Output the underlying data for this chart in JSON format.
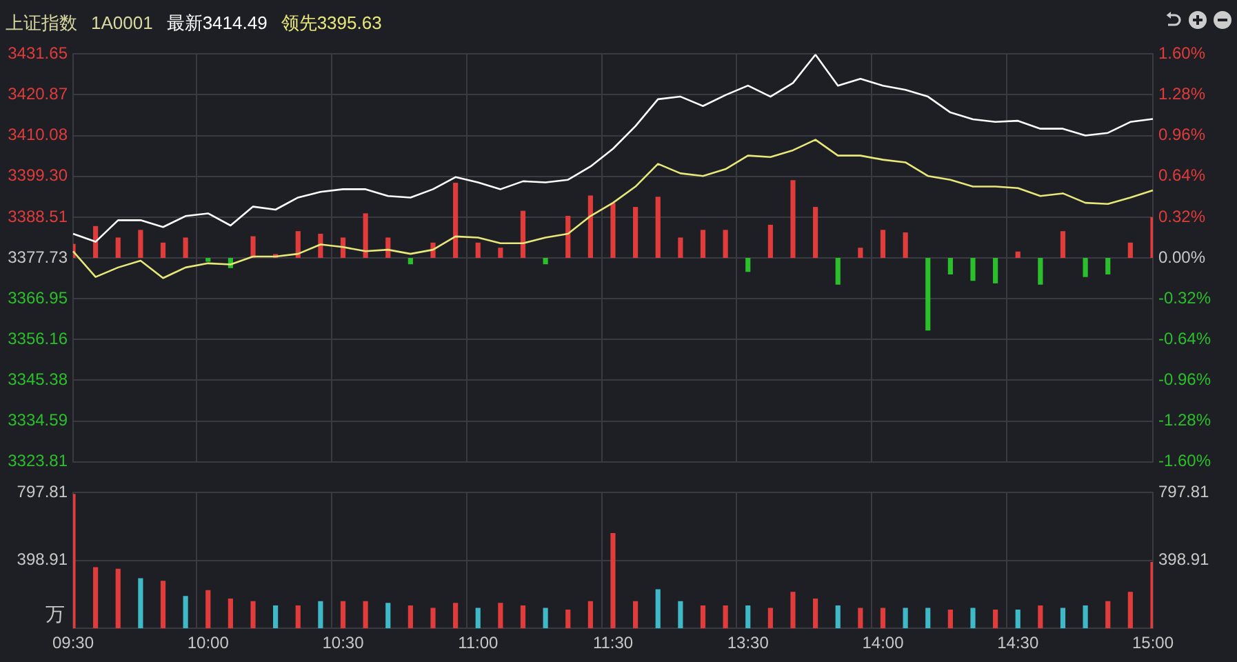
{
  "chart_data": [
    {
      "type": "line",
      "title": "上证指数",
      "annotations": [
        "1A0001",
        "最新3414.49",
        "领先3395.63"
      ],
      "categories": [
        null,
        null,
        null,
        null,
        null,
        null,
        null,
        null,
        null,
        null,
        null,
        null,
        null,
        null,
        null,
        null,
        null,
        null,
        null,
        null,
        null,
        null,
        null,
        null,
        null,
        null,
        null,
        null,
        null,
        null,
        null,
        null,
        null,
        null,
        null,
        null,
        null,
        null,
        null,
        null,
        null,
        null,
        null,
        null,
        null,
        null,
        null,
        null,
        null
      ],
      "series": [
        {
          "type": "bar",
          "axis": "y2",
          "colors": [
            "#e03c3c",
            "#e03c3c",
            "#e03c3c",
            "#e03c3c",
            "#e03c3c",
            "#e03c3c",
            "#2bbf2b",
            "#2bbf2b",
            "#e03c3c",
            "#e03c3c",
            "#e03c3c",
            "#e03c3c",
            "#e03c3c",
            "#e03c3c",
            "#e03c3c",
            "#2bbf2b",
            "#e03c3c",
            "#e03c3c",
            "#e03c3c",
            "#e03c3c",
            "#e03c3c",
            "#2bbf2b",
            "#e03c3c",
            "#e03c3c",
            "#e03c3c",
            "#e03c3c",
            "#e03c3c",
            "#e03c3c",
            "#e03c3c",
            "#e03c3c",
            "#2bbf2b",
            "#e03c3c",
            "#e03c3c",
            "#e03c3c",
            "#2bbf2b",
            "#e03c3c",
            "#e03c3c",
            "#e03c3c",
            "#2bbf2b",
            "#2bbf2b",
            "#2bbf2b",
            "#2bbf2b",
            "#e03c3c",
            "#2bbf2b",
            "#e03c3c",
            "#2bbf2b",
            "#2bbf2b",
            "#e03c3c",
            "#e03c3c"
          ],
          "values": [
            0.11,
            0.25,
            0.16,
            0.22,
            0.12,
            0.16,
            -0.03,
            -0.08,
            0.17,
            0.03,
            0.21,
            0.19,
            0.16,
            0.35,
            0.16,
            -0.05,
            0.12,
            0.59,
            0.12,
            0.08,
            0.37,
            -0.05,
            0.33,
            0.49,
            0.43,
            0.4,
            0.48,
            0.16,
            0.22,
            0.22,
            -0.11,
            0.26,
            0.61,
            0.4,
            -0.21,
            0.08,
            0.22,
            0.2,
            -0.57,
            -0.13,
            -0.18,
            -0.2,
            0.05,
            -0.21,
            0.21,
            -0.15,
            -0.13,
            0.12,
            0.32
          ]
        },
        {
          "color": "#ffffff",
          "values": [
            3384.1,
            3382.0,
            3387.7,
            3387.7,
            3385.9,
            3388.8,
            3389.5,
            3386.3,
            3391.3,
            3390.5,
            3393.7,
            3395.2,
            3395.9,
            3395.9,
            3394.1,
            3393.7,
            3395.9,
            3399.1,
            3397.7,
            3395.9,
            3398.0,
            3397.7,
            3398.4,
            3401.9,
            3406.6,
            3412.6,
            3419.7,
            3420.4,
            3417.9,
            3420.8,
            3423.3,
            3420.4,
            3424.0,
            3431.5,
            3423.3,
            3425.1,
            3423.3,
            3422.2,
            3420.4,
            3416.2,
            3414.4,
            3413.7,
            3414.0,
            3411.9,
            3411.9,
            3410.1,
            3410.8,
            3413.7,
            3414.5
          ]
        },
        {
          "color": "#e8e87a",
          "values": [
            3379.5,
            3372.7,
            3375.2,
            3377.0,
            3372.4,
            3375.2,
            3376.3,
            3376.0,
            3378.1,
            3378.1,
            3378.8,
            3381.3,
            3380.6,
            3379.5,
            3379.9,
            3378.8,
            3379.9,
            3383.4,
            3383.1,
            3381.6,
            3381.6,
            3383.1,
            3384.1,
            3388.8,
            3392.3,
            3396.6,
            3402.6,
            3400.1,
            3399.4,
            3401.2,
            3404.8,
            3404.4,
            3406.2,
            3409.0,
            3404.8,
            3404.8,
            3403.7,
            3403.0,
            3399.4,
            3398.4,
            3396.6,
            3396.6,
            3396.2,
            3394.1,
            3394.8,
            3392.3,
            3392.0,
            3393.7,
            3395.6
          ]
        }
      ],
      "ylim": [
        3323.81,
        3431.65
      ],
      "yticks": [
        3323.81,
        3334.59,
        3345.38,
        3356.16,
        3366.95,
        3377.73,
        3388.51,
        {
          "value": 3399.3,
          "label": "3399.30"
        },
        3410.08,
        3420.87,
        3431.65
      ],
      "y2lim": [
        -1.6,
        1.6
      ],
      "y2ticks": [
        {
          "value": -1.6,
          "label": "-1.60%"
        },
        {
          "value": -1.28,
          "label": "-1.28%"
        },
        {
          "value": -0.96,
          "label": "-0.96%"
        },
        {
          "value": -0.64,
          "label": "-0.64%"
        },
        {
          "value": -0.32,
          "label": "-0.32%"
        },
        {
          "value": 0,
          "label": "0.00%"
        },
        {
          "value": 0.32,
          "label": "0.32%"
        },
        {
          "value": 0.64,
          "label": "0.64%"
        },
        {
          "value": 0.96,
          "label": "0.96%"
        },
        {
          "value": 1.28,
          "label": "1.28%"
        },
        {
          "value": 1.6,
          "label": "1.60%"
        }
      ],
      "tick_labels": "y",
      "grid": true,
      "marker": "none"
    },
    {
      "type": "bar",
      "ylabel": "万",
      "categories": [
        "09:30",
        null,
        null,
        null,
        null,
        null,
        "10:00",
        null,
        null,
        null,
        null,
        null,
        "10:30",
        null,
        null,
        null,
        null,
        null,
        "11:00",
        null,
        null,
        null,
        null,
        null,
        "11:30",
        null,
        null,
        null,
        null,
        null,
        "13:30",
        null,
        null,
        null,
        null,
        null,
        "14:00",
        null,
        null,
        null,
        null,
        null,
        "14:30",
        null,
        null,
        null,
        null,
        null,
        "15:00"
      ],
      "values": [
        790,
        360,
        350,
        295,
        280,
        190,
        225,
        175,
        160,
        135,
        135,
        160,
        160,
        160,
        150,
        135,
        120,
        150,
        120,
        150,
        135,
        120,
        110,
        160,
        560,
        160,
        230,
        160,
        135,
        135,
        135,
        120,
        215,
        175,
        135,
        120,
        120,
        120,
        120,
        110,
        120,
        110,
        110,
        135,
        120,
        135,
        160,
        215,
        390
      ],
      "colors": [
        "#e03c3c",
        "#e03c3c",
        "#e03c3c",
        "#3fb8c8",
        "#e03c3c",
        "#3fb8c8",
        "#e03c3c",
        "#e03c3c",
        "#e03c3c",
        "#3fb8c8",
        "#e03c3c",
        "#3fb8c8",
        "#e03c3c",
        "#e03c3c",
        "#3fb8c8",
        "#e03c3c",
        "#e03c3c",
        "#e03c3c",
        "#3fb8c8",
        "#e03c3c",
        "#e03c3c",
        "#3fb8c8",
        "#e03c3c",
        "#e03c3c",
        "#e03c3c",
        "#e03c3c",
        "#3fb8c8",
        "#3fb8c8",
        "#e03c3c",
        "#e03c3c",
        "#3fb8c8",
        "#e03c3c",
        "#e03c3c",
        "#e03c3c",
        "#3fb8c8",
        "#e03c3c",
        "#e03c3c",
        "#3fb8c8",
        "#3fb8c8",
        "#e03c3c",
        "#3fb8c8",
        "#e03c3c",
        "#3fb8c8",
        "#e03c3c",
        "#3fb8c8",
        "#3fb8c8",
        "#e03c3c",
        "#e03c3c",
        "#e03c3c"
      ],
      "ylim": [
        0,
        797.81
      ],
      "yticks": [
        398.91,
        797.81
      ],
      "y2lim": [
        0,
        797.81
      ],
      "y2ticks": [
        398.91,
        797.81
      ],
      "grid": true
    }
  ]
}
